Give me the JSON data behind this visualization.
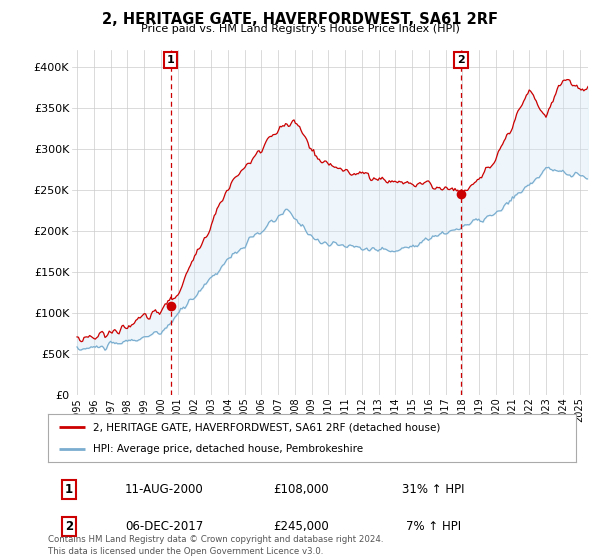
{
  "title": "2, HERITAGE GATE, HAVERFORDWEST, SA61 2RF",
  "subtitle": "Price paid vs. HM Land Registry's House Price Index (HPI)",
  "yticks": [
    0,
    50000,
    100000,
    150000,
    200000,
    250000,
    300000,
    350000,
    400000
  ],
  "ylim": [
    0,
    420000
  ],
  "xlim_left": 1994.7,
  "xlim_right": 2025.5,
  "transaction1": {
    "date": "11-AUG-2000",
    "price": 108000,
    "hpi_pct": "31%",
    "direction": "↑",
    "label": "1",
    "year": 2000.6
  },
  "transaction2": {
    "date": "06-DEC-2017",
    "price": 245000,
    "hpi_pct": "7%",
    "direction": "↑",
    "label": "2",
    "year": 2017.92
  },
  "legend_property": "2, HERITAGE GATE, HAVERFORDWEST, SA61 2RF (detached house)",
  "legend_hpi": "HPI: Average price, detached house, Pembrokeshire",
  "footer1": "Contains HM Land Registry data © Crown copyright and database right 2024.",
  "footer2": "This data is licensed under the Open Government Licence v3.0.",
  "property_color": "#cc0000",
  "hpi_color": "#7aadcf",
  "fill_color": "#d0e8f5",
  "background_color": "#ffffff",
  "grid_color": "#cccccc",
  "box_color": "#cc0000"
}
